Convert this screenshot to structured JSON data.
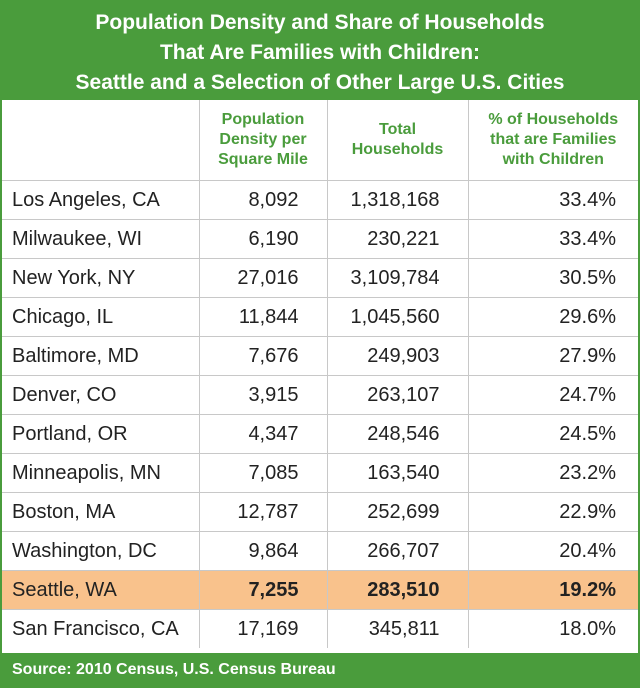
{
  "chart_data": {
    "type": "table",
    "title_lines": [
      "Population Density and Share of Households",
      "That Are Families with Children:",
      "Seattle and a Selection of Other Large U.S. Cities"
    ],
    "columns": [
      "",
      "Population Density per Square Mile",
      "Total Households",
      "% of Households that are Families with Children"
    ],
    "column_lines": [
      [],
      [
        "Population",
        "Density per",
        "Square Mile"
      ],
      [
        "Total",
        "Households"
      ],
      [
        "% of Households",
        "that are Families",
        "with Children"
      ]
    ],
    "rows": [
      {
        "city": "Los Angeles, CA",
        "density": "8,092",
        "households": "1,318,168",
        "pct": "33.4%"
      },
      {
        "city": "Milwaukee, WI",
        "density": "6,190",
        "households": "230,221",
        "pct": "33.4%"
      },
      {
        "city": "New York, NY",
        "density": "27,016",
        "households": "3,109,784",
        "pct": "30.5%"
      },
      {
        "city": "Chicago, IL",
        "density": "11,844",
        "households": "1,045,560",
        "pct": "29.6%"
      },
      {
        "city": "Baltimore, MD",
        "density": "7,676",
        "households": "249,903",
        "pct": "27.9%"
      },
      {
        "city": "Denver, CO",
        "density": "3,915",
        "households": "263,107",
        "pct": "24.7%"
      },
      {
        "city": "Portland, OR",
        "density": "4,347",
        "households": "248,546",
        "pct": "24.5%"
      },
      {
        "city": "Minneapolis, MN",
        "density": "7,085",
        "households": "163,540",
        "pct": "23.2%"
      },
      {
        "city": "Boston, MA",
        "density": "12,787",
        "households": "252,699",
        "pct": "22.9%"
      },
      {
        "city": "Washington, DC",
        "density": "9,864",
        "households": "266,707",
        "pct": "20.4%"
      },
      {
        "city": "Seattle, WA",
        "density": "7,255",
        "households": "283,510",
        "pct": "19.2%",
        "highlight": true
      },
      {
        "city": "San Francisco, CA",
        "density": "17,169",
        "households": "345,811",
        "pct": "18.0%"
      }
    ],
    "source": "Source: 2010 Census, U.S. Census Bureau"
  },
  "colors": {
    "accent_green": "#4a9c3c",
    "highlight_row": "#f9c28c"
  }
}
